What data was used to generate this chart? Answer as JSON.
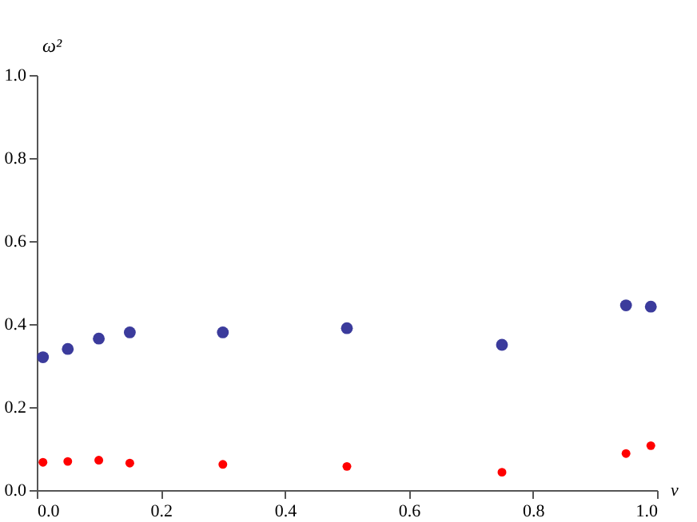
{
  "chart_data": {
    "type": "scatter",
    "xlabel": "ν",
    "ylabel": "ω²",
    "x": [
      0.01,
      0.05,
      0.1,
      0.15,
      0.3,
      0.5,
      0.75,
      0.95,
      0.99
    ],
    "series": [
      {
        "color": "#3b3b9c",
        "values": [
          0.32,
          0.34,
          0.365,
          0.38,
          0.38,
          0.39,
          0.35,
          0.445,
          0.442
        ]
      },
      {
        "color": "#ff0000",
        "values": [
          0.067,
          0.069,
          0.072,
          0.065,
          0.062,
          0.057,
          0.043,
          0.088,
          0.107
        ]
      }
    ],
    "xlim": [
      0,
      1
    ],
    "ylim": [
      0,
      1
    ],
    "xticks": [
      {
        "value": 0,
        "label": "0.0"
      },
      0.2,
      0.4,
      0.6,
      0.8,
      {
        "value": 1,
        "label": "1.0"
      }
    ],
    "yticks": [
      {
        "value": 0,
        "label": "0.0"
      },
      0.2,
      0.4,
      0.6,
      0.8,
      {
        "value": 1,
        "label": "1.0"
      }
    ],
    "marker": "circle"
  }
}
